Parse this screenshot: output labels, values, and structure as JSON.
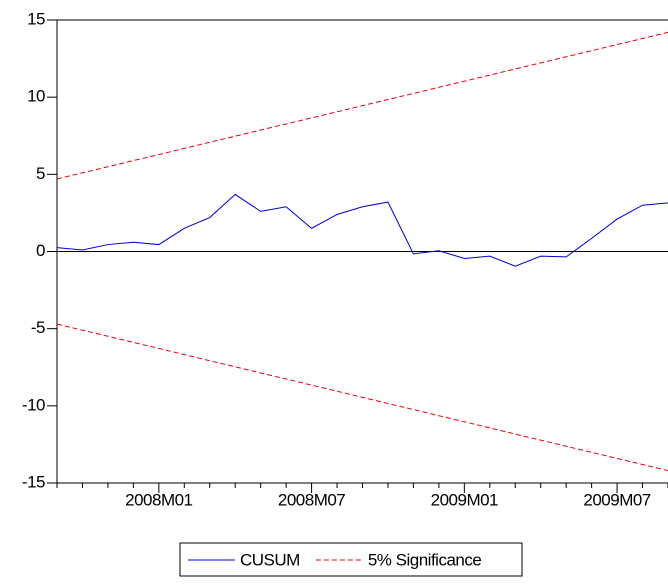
{
  "chart_data": {
    "type": "line",
    "categories": [
      null,
      null,
      null,
      null,
      "2008M01",
      null,
      null,
      null,
      null,
      null,
      "2008M07",
      null,
      null,
      null,
      null,
      null,
      "2009M01",
      null,
      null,
      null,
      null,
      null,
      "2009M07",
      null,
      null
    ],
    "series": [
      {
        "name": "CUSUM",
        "color": "#0000cc",
        "dash": false,
        "values": [
          0.25,
          0.1,
          0.45,
          0.6,
          0.45,
          1.5,
          2.2,
          3.7,
          2.6,
          2.9,
          1.5,
          2.4,
          2.9,
          3.2,
          -0.15,
          0.05,
          -0.45,
          -0.3,
          -0.95,
          -0.3,
          -0.35,
          0.85,
          2.1,
          3.0,
          3.15
        ]
      },
      {
        "name": "5% Significance",
        "color": "#e8000b",
        "dash": true,
        "values": [
          4.7,
          5.1,
          5.49,
          5.89,
          6.28,
          6.68,
          7.08,
          7.47,
          7.87,
          8.26,
          8.66,
          9.05,
          9.45,
          9.85,
          10.24,
          10.64,
          11.03,
          11.43,
          11.83,
          12.22,
          12.62,
          13.01,
          13.41,
          13.8,
          14.2
        ]
      },
      {
        "color": "#e8000b",
        "dash": true,
        "values": [
          -4.7,
          -5.1,
          -5.49,
          -5.89,
          -6.28,
          -6.68,
          -7.08,
          -7.47,
          -7.87,
          -8.26,
          -8.66,
          -9.05,
          -9.45,
          -9.85,
          -10.24,
          -10.64,
          -11.03,
          -11.43,
          -11.83,
          -12.22,
          -12.62,
          -13.01,
          -13.41,
          -13.8,
          -14.2
        ]
      }
    ],
    "ylim": [
      -15,
      15
    ],
    "yticks": [
      -15,
      -10,
      -5,
      0,
      5,
      10,
      15
    ],
    "zero_line": true
  }
}
